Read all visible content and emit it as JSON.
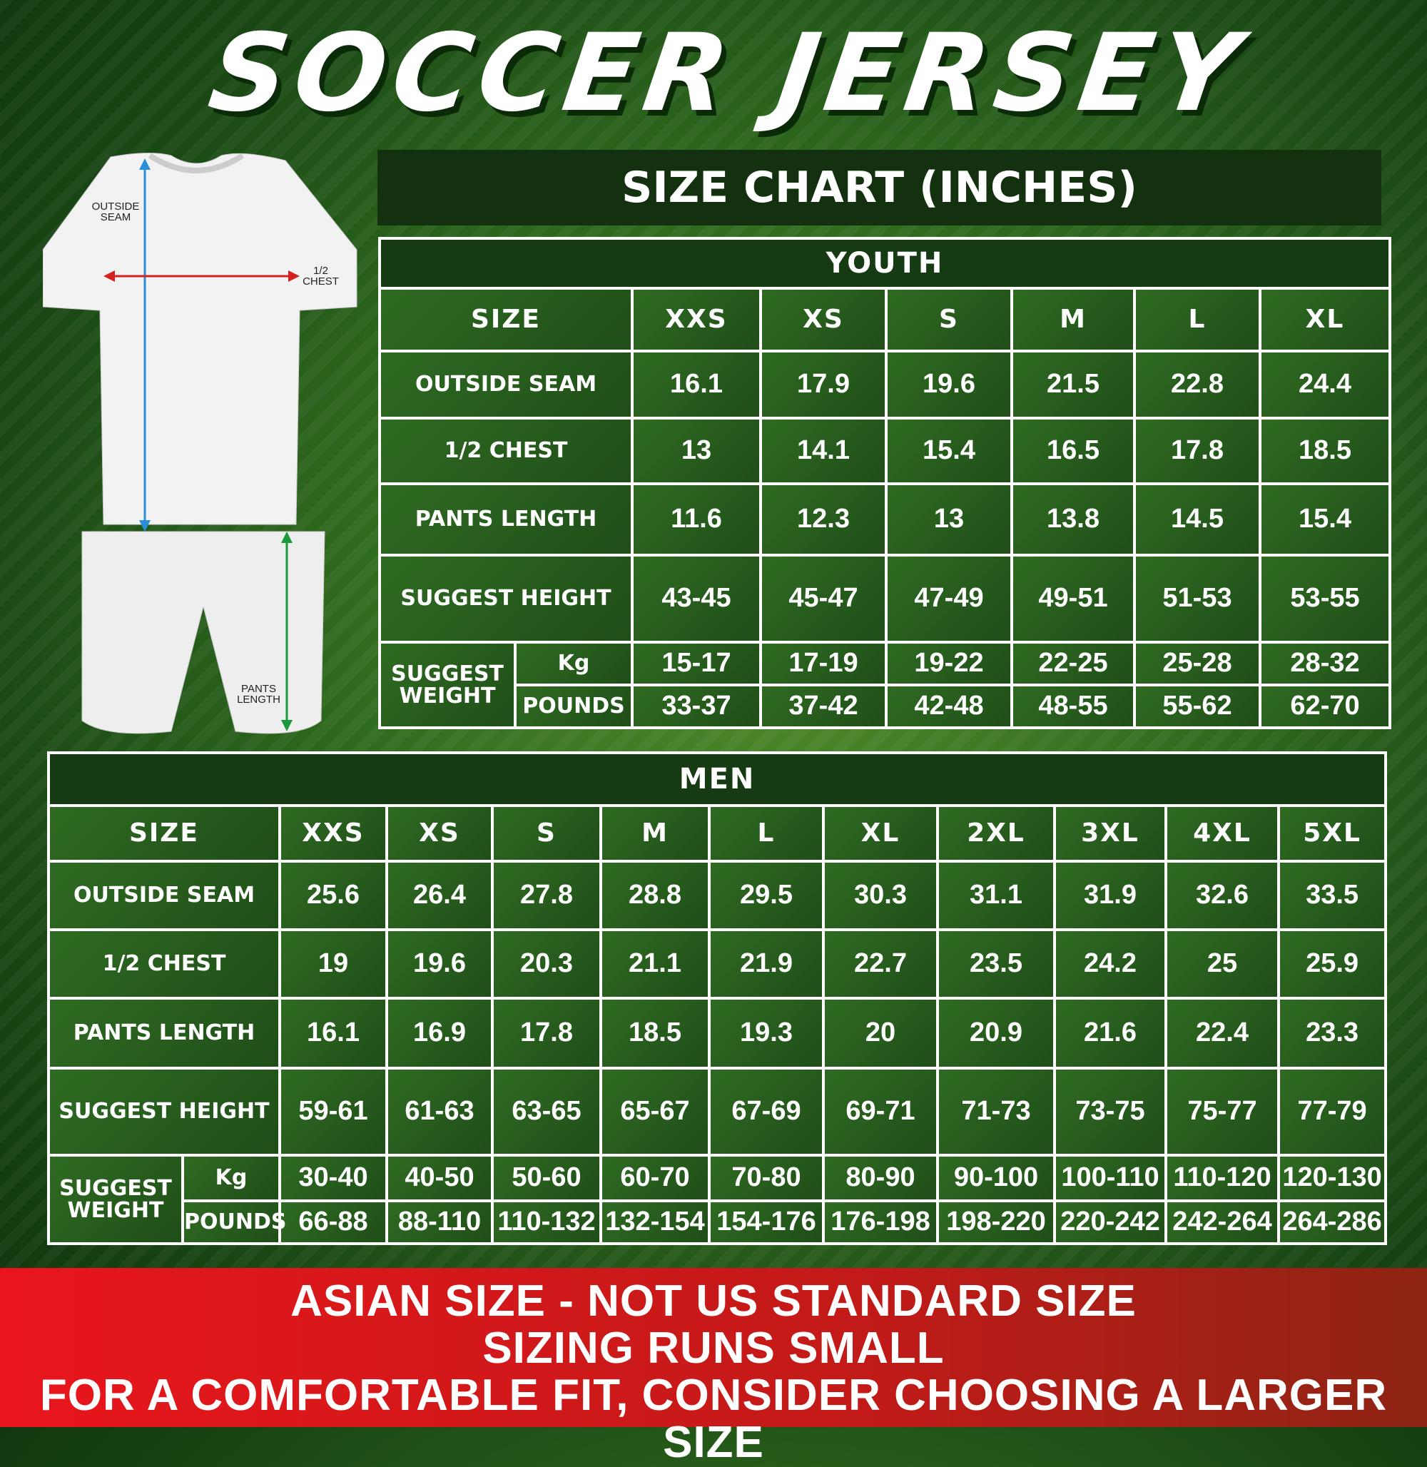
{
  "title": "SOCCER JERSEY",
  "chart_header": "SIZE CHART (INCHES)",
  "illustration": {
    "outside_seam": "OUTSIDE SEAM",
    "half_chest": "1/2 CHEST",
    "pants_length": "PANTS LENGTH"
  },
  "row_labels": {
    "size": "SIZE",
    "outside_seam": "OUTSIDE SEAM",
    "half_chest": "1/2 CHEST",
    "pants_length": "PANTS LENGTH",
    "suggest_height": "SUGGEST HEIGHT",
    "suggest_weight": "SUGGEST WEIGHT",
    "kg": "Kg",
    "pounds": "POUNDS"
  },
  "youth": {
    "title": "YOUTH",
    "sizes": [
      "XXS",
      "XS",
      "S",
      "M",
      "L",
      "XL"
    ],
    "outside_seam": [
      "16.1",
      "17.9",
      "19.6",
      "21.5",
      "22.8",
      "24.4"
    ],
    "half_chest": [
      "13",
      "14.1",
      "15.4",
      "16.5",
      "17.8",
      "18.5"
    ],
    "pants_length": [
      "11.6",
      "12.3",
      "13",
      "13.8",
      "14.5",
      "15.4"
    ],
    "suggest_height": [
      "43-45",
      "45-47",
      "47-49",
      "49-51",
      "51-53",
      "53-55"
    ],
    "kg": [
      "15-17",
      "17-19",
      "19-22",
      "22-25",
      "25-28",
      "28-32"
    ],
    "pounds": [
      "33-37",
      "37-42",
      "42-48",
      "48-55",
      "55-62",
      "62-70"
    ]
  },
  "men": {
    "title": "MEN",
    "sizes": [
      "XXS",
      "XS",
      "S",
      "M",
      "L",
      "XL",
      "2XL",
      "3XL",
      "4XL",
      "5XL"
    ],
    "outside_seam": [
      "25.6",
      "26.4",
      "27.8",
      "28.8",
      "29.5",
      "30.3",
      "31.1",
      "31.9",
      "32.6",
      "33.5"
    ],
    "half_chest": [
      "19",
      "19.6",
      "20.3",
      "21.1",
      "21.9",
      "22.7",
      "23.5",
      "24.2",
      "25",
      "25.9"
    ],
    "pants_length": [
      "16.1",
      "16.9",
      "17.8",
      "18.5",
      "19.3",
      "20",
      "20.9",
      "21.6",
      "22.4",
      "23.3"
    ],
    "suggest_height": [
      "59-61",
      "61-63",
      "63-65",
      "65-67",
      "67-69",
      "69-71",
      "71-73",
      "73-75",
      "75-77",
      "77-79"
    ],
    "kg": [
      "30-40",
      "40-50",
      "50-60",
      "60-70",
      "70-80",
      "80-90",
      "90-100",
      "100-110",
      "110-120",
      "120-130"
    ],
    "pounds": [
      "66-88",
      "88-110",
      "110-132",
      "132-154",
      "154-176",
      "176-198",
      "198-220",
      "220-242",
      "242-264",
      "264-286"
    ]
  },
  "banner": [
    "ASIAN SIZE - NOT US STANDARD SIZE",
    "SIZING RUNS SMALL",
    "FOR A COMFORTABLE FIT, CONSIDER CHOOSING A LARGER SIZE"
  ],
  "colors": {
    "green_dark": "#13300f",
    "green": "#2f6b22",
    "banner_red": "#e8161c",
    "seam_arrow": "#2a8fd6",
    "chest_arrow": "#d42020",
    "pants_arrow": "#1a9a3a"
  }
}
